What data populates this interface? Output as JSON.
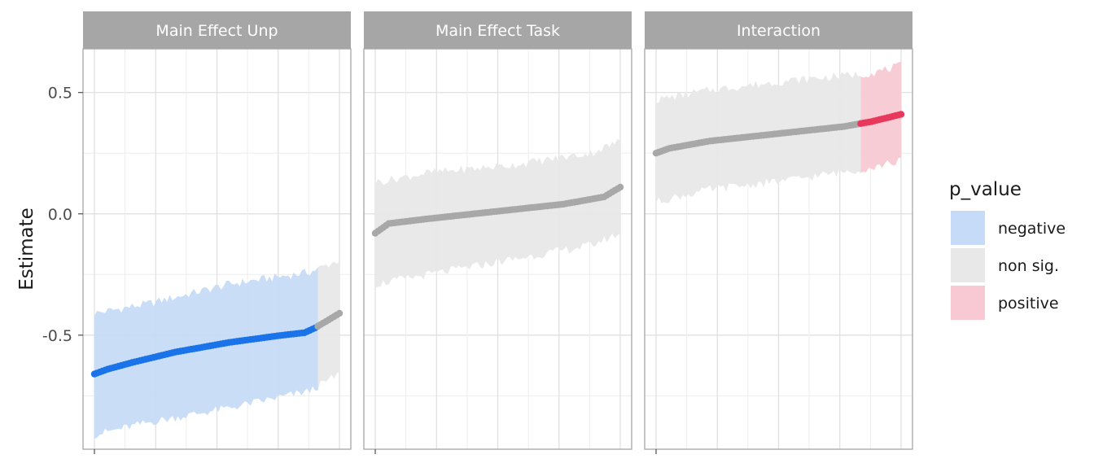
{
  "chart_data": {
    "type": "line",
    "ylabel": "Estimate",
    "xlabel": "",
    "ylim": [
      -0.97,
      0.68
    ],
    "y_ticks": [
      0.5,
      0.0,
      -0.5
    ],
    "y_tick_labels": [
      "0.5",
      "0.0",
      "-0.5"
    ],
    "grid": true,
    "legend": {
      "title": "p_value",
      "position": "right",
      "entries": [
        {
          "label": "negative",
          "fill": "#c6dbf7",
          "line": "#1a73e8"
        },
        {
          "label": "non sig.",
          "fill": "#e8e8e8",
          "line": "#a8a8a8"
        },
        {
          "label": "positive",
          "fill": "#f8c9d3",
          "line": "#e8385b"
        }
      ]
    },
    "panels": [
      {
        "strip_label": "Main Effect Unp",
        "n_points": 92,
        "estimate": [
          [
            0,
            -0.66
          ],
          [
            5,
            -0.64
          ],
          [
            15,
            -0.61
          ],
          [
            30,
            -0.57
          ],
          [
            50,
            -0.53
          ],
          [
            70,
            -0.5
          ],
          [
            78,
            -0.49
          ],
          [
            82,
            -0.47
          ],
          [
            91,
            -0.41
          ]
        ],
        "lower": [
          [
            0,
            -0.91
          ],
          [
            20,
            -0.86
          ],
          [
            50,
            -0.8
          ],
          [
            80,
            -0.73
          ],
          [
            91,
            -0.66
          ]
        ],
        "upper": [
          [
            0,
            -0.41
          ],
          [
            20,
            -0.37
          ],
          [
            50,
            -0.29
          ],
          [
            80,
            -0.24
          ],
          [
            91,
            -0.19
          ]
        ],
        "significance": [
          {
            "from": 0,
            "to": 83,
            "category": "negative"
          },
          {
            "from": 83,
            "to": 91,
            "category": "non sig."
          }
        ]
      },
      {
        "strip_label": "Main Effect Task",
        "n_points": 92,
        "estimate": [
          [
            0,
            -0.08
          ],
          [
            5,
            -0.04
          ],
          [
            20,
            -0.02
          ],
          [
            45,
            0.01
          ],
          [
            70,
            0.04
          ],
          [
            85,
            0.07
          ],
          [
            91,
            0.11
          ]
        ],
        "lower": [
          [
            0,
            -0.29
          ],
          [
            20,
            -0.25
          ],
          [
            50,
            -0.19
          ],
          [
            80,
            -0.13
          ],
          [
            91,
            -0.08
          ]
        ],
        "upper": [
          [
            0,
            0.13
          ],
          [
            20,
            0.17
          ],
          [
            50,
            0.2
          ],
          [
            80,
            0.25
          ],
          [
            91,
            0.3
          ]
        ],
        "significance": [
          {
            "from": 0,
            "to": 91,
            "category": "non sig."
          }
        ]
      },
      {
        "strip_label": "Interaction",
        "n_points": 92,
        "estimate": [
          [
            0,
            0.25
          ],
          [
            5,
            0.27
          ],
          [
            20,
            0.3
          ],
          [
            45,
            0.33
          ],
          [
            70,
            0.36
          ],
          [
            80,
            0.38
          ],
          [
            91,
            0.41
          ]
        ],
        "lower": [
          [
            0,
            0.05
          ],
          [
            20,
            0.1
          ],
          [
            50,
            0.14
          ],
          [
            80,
            0.19
          ],
          [
            91,
            0.22
          ]
        ],
        "upper": [
          [
            0,
            0.47
          ],
          [
            20,
            0.51
          ],
          [
            50,
            0.55
          ],
          [
            80,
            0.58
          ],
          [
            91,
            0.61
          ]
        ],
        "significance": [
          {
            "from": 0,
            "to": 76,
            "category": "non sig."
          },
          {
            "from": 76,
            "to": 91,
            "category": "positive"
          }
        ]
      }
    ]
  }
}
